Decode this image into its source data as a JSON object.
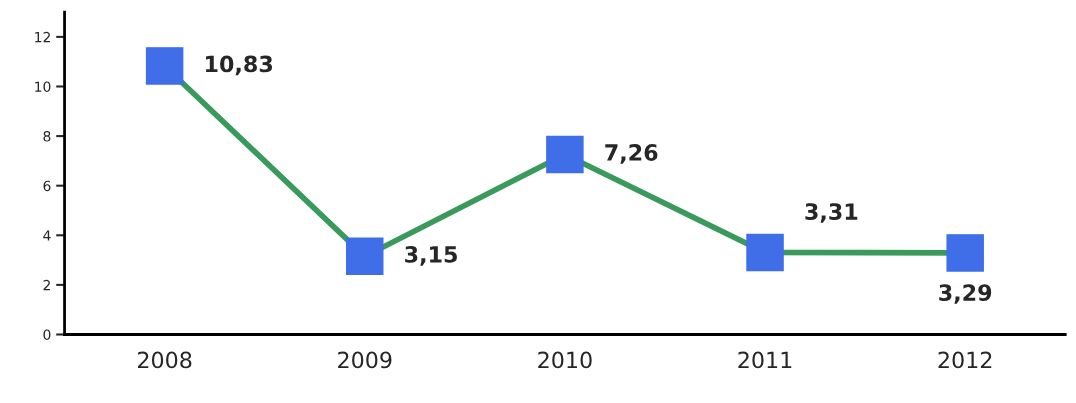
{
  "chart_data": {
    "type": "line",
    "categories": [
      "2008",
      "2009",
      "2010",
      "2011",
      "2012"
    ],
    "series": [
      {
        "color": "#3a9a5c",
        "values": [
          10.83,
          3.15,
          7.26,
          3.31,
          3.29
        ],
        "value_labels": [
          "10,83",
          "3,15",
          "7,26",
          "3,31",
          "3,29"
        ],
        "colors": [
          "#3f6ee8",
          "#3f6ee8",
          "#3f6ee8",
          "#3f6ee8",
          "#3f6ee8"
        ]
      }
    ],
    "ylim": [
      0,
      13
    ],
    "yticks": [
      0,
      2,
      4,
      6,
      8,
      10,
      12
    ],
    "grid": false,
    "legend": false,
    "marker": "square",
    "line_style": "solid"
  }
}
